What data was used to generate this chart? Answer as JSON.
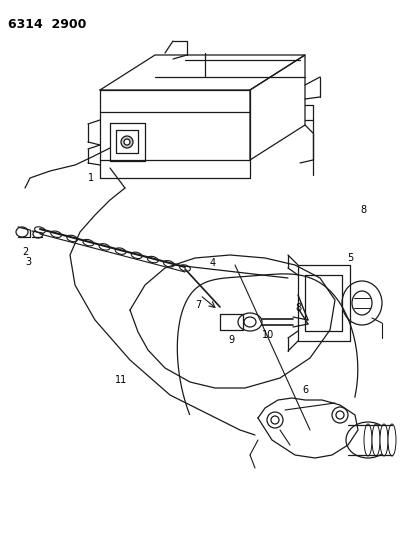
{
  "title": "6314  2900",
  "background_color": "#ffffff",
  "line_color": "#1a1a1a",
  "label_color": "#000000",
  "fig_width": 4.08,
  "fig_height": 5.33,
  "dpi": 100
}
